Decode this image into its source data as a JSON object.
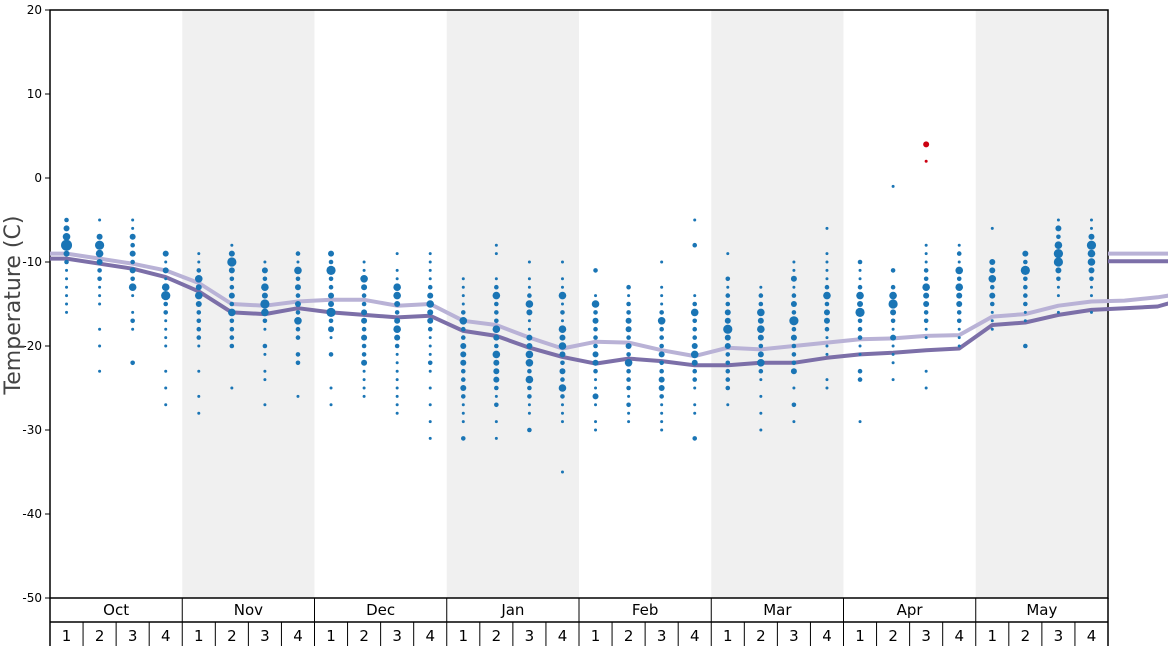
{
  "chart_data": {
    "type": "scatter",
    "ylabel": "Temperature (C)",
    "ylim": [
      -50,
      20
    ],
    "yticks": [
      20,
      10,
      0,
      -10,
      -20,
      -30,
      -40,
      -50
    ],
    "months": [
      "Oct",
      "Nov",
      "Dec",
      "Jan",
      "Feb",
      "Mar",
      "Apr",
      "May"
    ],
    "weeks": [
      "1",
      "2",
      "3",
      "4"
    ],
    "shaded_months": [
      "Nov",
      "Jan",
      "Mar",
      "May"
    ],
    "colors": {
      "points": "#1a75b5",
      "extreme_points": "#cc0011",
      "line_upper": "#b9b2d6",
      "line_lower": "#7c6fa8",
      "shade": "#f0f0f0"
    },
    "series": [
      {
        "values": [
          -9.0,
          -9.6,
          -10.2,
          -11.0,
          -12.5,
          -15.0,
          -15.2,
          -14.7,
          -14.5,
          -14.5,
          -15.2,
          -15.0,
          -17.0,
          -17.5,
          -19.0,
          -20.3,
          -19.5,
          -19.6,
          -20.5,
          -21.2,
          -20.2,
          -20.4,
          -20.0,
          -19.6,
          -19.2,
          -19.1,
          -18.8,
          -18.7,
          -16.5,
          -16.2,
          -15.2,
          -14.7,
          -14.6,
          -14.2,
          -13.6,
          -13.0,
          -12.4,
          -10.5,
          -9.5,
          -9.0
        ]
      },
      {
        "values": [
          -9.6,
          -10.2,
          -10.8,
          -11.8,
          -13.5,
          -16.0,
          -16.2,
          -15.5,
          -16.0,
          -16.3,
          -16.6,
          -16.4,
          -18.2,
          -18.8,
          -20.2,
          -21.3,
          -22.1,
          -21.5,
          -21.8,
          -22.3,
          -22.3,
          -22.0,
          -22.0,
          -21.4,
          -21.0,
          -20.8,
          -20.5,
          -20.3,
          -17.5,
          -17.2,
          -16.3,
          -15.7,
          -15.5,
          -15.3,
          -14.2,
          -13.3,
          -13.0,
          -11.2,
          -10.2,
          -9.9
        ]
      }
    ],
    "extreme_points": [
      {
        "x": 26,
        "y": 4
      },
      {
        "x": 26,
        "y": 2
      }
    ],
    "point_columns": [
      {
        "values": [
          -5,
          -6,
          -7,
          -8,
          -9,
          -10,
          -11,
          -12,
          -13,
          -14,
          -15,
          -16
        ],
        "counts": [
          2,
          3,
          4,
          6,
          3,
          2,
          1,
          1,
          1,
          1,
          1,
          1
        ]
      },
      {
        "values": [
          -5,
          -7,
          -8,
          -9,
          -10,
          -11,
          -12,
          -13,
          -14,
          -15,
          -18,
          -20,
          -23
        ],
        "counts": [
          1,
          3,
          5,
          4,
          3,
          2,
          2,
          1,
          1,
          1,
          1,
          1,
          1
        ]
      },
      {
        "values": [
          -5,
          -6,
          -7,
          -8,
          -9,
          -10,
          -11,
          -12,
          -13,
          -14,
          -16,
          -17,
          -18,
          -22
        ],
        "counts": [
          1,
          1,
          3,
          2,
          3,
          2,
          3,
          2,
          4,
          1,
          1,
          2,
          1,
          2
        ]
      },
      {
        "values": [
          -9,
          -10,
          -11,
          -12,
          -13,
          -14,
          -15,
          -16,
          -17,
          -18,
          -19,
          -20,
          -23,
          -25,
          -27
        ],
        "counts": [
          3,
          1,
          3,
          1,
          4,
          5,
          2,
          2,
          1,
          1,
          1,
          1,
          1,
          1,
          1
        ]
      },
      {
        "values": [
          -9,
          -10,
          -11,
          -12,
          -13,
          -14,
          -15,
          -16,
          -17,
          -18,
          -19,
          -20,
          -23,
          -26,
          -28
        ],
        "counts": [
          1,
          1,
          2,
          4,
          3,
          4,
          3,
          2,
          2,
          2,
          2,
          1,
          1,
          1,
          1
        ]
      },
      {
        "values": [
          -8,
          -9,
          -10,
          -11,
          -12,
          -13,
          -14,
          -15,
          -16,
          -17,
          -18,
          -19,
          -20,
          -25
        ],
        "counts": [
          1,
          3,
          5,
          3,
          2,
          2,
          3,
          2,
          4,
          2,
          2,
          2,
          2,
          1
        ]
      },
      {
        "values": [
          -10,
          -11,
          -12,
          -13,
          -14,
          -15,
          -16,
          -17,
          -18,
          -20,
          -21,
          -23,
          -24,
          -27
        ],
        "counts": [
          1,
          3,
          2,
          4,
          3,
          5,
          4,
          2,
          1,
          2,
          1,
          1,
          1,
          1
        ]
      },
      {
        "values": [
          -9,
          -10,
          -11,
          -12,
          -13,
          -14,
          -15,
          -16,
          -17,
          -18,
          -19,
          -21,
          -22,
          -26
        ],
        "counts": [
          2,
          1,
          4,
          2,
          3,
          2,
          3,
          2,
          4,
          2,
          2,
          2,
          2,
          1
        ]
      },
      {
        "values": [
          -9,
          -10,
          -11,
          -12,
          -13,
          -14,
          -15,
          -16,
          -17,
          -18,
          -19,
          -21,
          -25,
          -27
        ],
        "counts": [
          3,
          2,
          5,
          2,
          2,
          3,
          3,
          5,
          2,
          3,
          1,
          2,
          1,
          1
        ]
      },
      {
        "values": [
          -10,
          -11,
          -12,
          -13,
          -14,
          -15,
          -16,
          -17,
          -18,
          -19,
          -20,
          -21,
          -22,
          -23,
          -24,
          -25,
          -26
        ],
        "counts": [
          1,
          1,
          4,
          3,
          2,
          2,
          3,
          3,
          2,
          3,
          2,
          2,
          3,
          1,
          1,
          1,
          1
        ]
      },
      {
        "values": [
          -9,
          -11,
          -12,
          -13,
          -14,
          -15,
          -16,
          -17,
          -18,
          -19,
          -20,
          -21,
          -22,
          -23,
          -24,
          -25,
          -26,
          -27,
          -28
        ],
        "counts": [
          1,
          1,
          1,
          4,
          4,
          3,
          2,
          3,
          4,
          3,
          2,
          1,
          1,
          1,
          1,
          1,
          1,
          1,
          1
        ]
      },
      {
        "values": [
          -9,
          -10,
          -11,
          -12,
          -13,
          -14,
          -15,
          -16,
          -17,
          -18,
          -19,
          -20,
          -21,
          -22,
          -23,
          -25,
          -27,
          -29,
          -31
        ],
        "counts": [
          1,
          1,
          1,
          1,
          2,
          3,
          4,
          3,
          3,
          2,
          1,
          1,
          1,
          2,
          1,
          1,
          1,
          1,
          1
        ]
      },
      {
        "values": [
          -12,
          -13,
          -14,
          -15,
          -16,
          -17,
          -18,
          -19,
          -20,
          -21,
          -22,
          -23,
          -24,
          -25,
          -26,
          -27,
          -28,
          -29,
          -31
        ],
        "counts": [
          1,
          1,
          1,
          1,
          2,
          4,
          2,
          2,
          3,
          3,
          3,
          2,
          2,
          3,
          2,
          1,
          1,
          1,
          2
        ]
      },
      {
        "values": [
          -8,
          -9,
          -12,
          -13,
          -14,
          -15,
          -16,
          -17,
          -18,
          -19,
          -20,
          -21,
          -22,
          -23,
          -24,
          -25,
          -26,
          -27,
          -29,
          -31
        ],
        "counts": [
          1,
          1,
          1,
          2,
          4,
          2,
          2,
          2,
          4,
          3,
          2,
          4,
          3,
          3,
          3,
          2,
          1,
          2,
          1,
          1
        ]
      },
      {
        "values": [
          -10,
          -12,
          -13,
          -14,
          -15,
          -16,
          -17,
          -18,
          -19,
          -20,
          -21,
          -22,
          -23,
          -24,
          -25,
          -26,
          -27,
          -28,
          -30
        ],
        "counts": [
          1,
          1,
          1,
          2,
          4,
          3,
          1,
          1,
          3,
          3,
          4,
          4,
          2,
          4,
          2,
          2,
          1,
          1,
          2
        ]
      },
      {
        "values": [
          -10,
          -12,
          -13,
          -14,
          -15,
          -16,
          -17,
          -18,
          -19,
          -20,
          -21,
          -22,
          -23,
          -24,
          -25,
          -26,
          -27,
          -28,
          -29,
          -35
        ],
        "counts": [
          1,
          1,
          1,
          4,
          1,
          2,
          1,
          4,
          3,
          4,
          3,
          2,
          3,
          2,
          4,
          2,
          1,
          1,
          1,
          1
        ]
      },
      {
        "values": [
          -11,
          -14,
          -15,
          -16,
          -17,
          -18,
          -19,
          -20,
          -21,
          -22,
          -23,
          -24,
          -25,
          -26,
          -27,
          -29,
          -30
        ],
        "counts": [
          2,
          1,
          4,
          2,
          3,
          2,
          2,
          2,
          3,
          3,
          2,
          1,
          1,
          3,
          1,
          1,
          1
        ]
      },
      {
        "values": [
          -13,
          -14,
          -15,
          -16,
          -17,
          -18,
          -19,
          -20,
          -21,
          -22,
          -23,
          -24,
          -25,
          -26,
          -27,
          -28,
          -29
        ],
        "counts": [
          2,
          1,
          2,
          2,
          3,
          3,
          2,
          3,
          2,
          4,
          2,
          2,
          2,
          1,
          2,
          1,
          1
        ]
      },
      {
        "values": [
          -10,
          -13,
          -14,
          -15,
          -16,
          -17,
          -18,
          -19,
          -20,
          -21,
          -22,
          -23,
          -24,
          -25,
          -26,
          -27,
          -28,
          -29,
          -30
        ],
        "counts": [
          1,
          1,
          1,
          1,
          2,
          4,
          2,
          2,
          2,
          3,
          2,
          2,
          3,
          3,
          2,
          1,
          1,
          1,
          1
        ]
      },
      {
        "values": [
          -5,
          -8,
          -14,
          -15,
          -16,
          -17,
          -18,
          -19,
          -20,
          -21,
          -22,
          -23,
          -24,
          -25,
          -27,
          -28,
          -31
        ],
        "counts": [
          1,
          2,
          1,
          2,
          4,
          2,
          2,
          2,
          3,
          4,
          3,
          2,
          2,
          1,
          1,
          1,
          2
        ]
      },
      {
        "values": [
          -9,
          -12,
          -13,
          -14,
          -15,
          -16,
          -17,
          -18,
          -19,
          -20,
          -21,
          -22,
          -23,
          -24,
          -25,
          -27
        ],
        "counts": [
          1,
          2,
          1,
          2,
          2,
          3,
          3,
          5,
          3,
          3,
          2,
          2,
          2,
          2,
          2,
          1
        ]
      },
      {
        "values": [
          -13,
          -14,
          -15,
          -16,
          -17,
          -18,
          -19,
          -20,
          -21,
          -22,
          -23,
          -24,
          -26,
          -28,
          -30
        ],
        "counts": [
          1,
          2,
          2,
          4,
          3,
          4,
          3,
          2,
          3,
          4,
          2,
          1,
          1,
          1,
          1
        ]
      },
      {
        "values": [
          -10,
          -11,
          -12,
          -13,
          -14,
          -15,
          -16,
          -17,
          -18,
          -19,
          -20,
          -21,
          -22,
          -23,
          -25,
          -27,
          -29
        ],
        "counts": [
          1,
          1,
          3,
          1,
          2,
          3,
          2,
          5,
          2,
          3,
          2,
          2,
          2,
          3,
          1,
          2,
          1
        ]
      },
      {
        "values": [
          -6,
          -9,
          -10,
          -11,
          -12,
          -13,
          -14,
          -15,
          -16,
          -17,
          -18,
          -19,
          -20,
          -21,
          -24,
          -25
        ],
        "counts": [
          1,
          1,
          1,
          1,
          1,
          2,
          4,
          2,
          3,
          3,
          2,
          1,
          1,
          1,
          1,
          1
        ]
      },
      {
        "values": [
          -10,
          -11,
          -12,
          -13,
          -14,
          -15,
          -16,
          -17,
          -18,
          -19,
          -20,
          -21,
          -23,
          -24,
          -29
        ],
        "counts": [
          2,
          1,
          1,
          2,
          4,
          3,
          5,
          2,
          2,
          2,
          1,
          1,
          2,
          2,
          1
        ]
      },
      {
        "values": [
          -1,
          -11,
          -13,
          -14,
          -15,
          -16,
          -17,
          -18,
          -19,
          -20,
          -21,
          -22,
          -24
        ],
        "counts": [
          1,
          2,
          2,
          4,
          5,
          3,
          2,
          1,
          3,
          1,
          1,
          1,
          1
        ]
      },
      {
        "values": [
          -8,
          -9,
          -10,
          -11,
          -12,
          -13,
          -14,
          -15,
          -16,
          -17,
          -18,
          -19,
          -23,
          -25
        ],
        "counts": [
          1,
          1,
          1,
          2,
          2,
          4,
          3,
          3,
          2,
          2,
          1,
          1,
          1,
          1
        ]
      },
      {
        "values": [
          -8,
          -9,
          -10,
          -11,
          -12,
          -13,
          -14,
          -15,
          -16,
          -17,
          -18,
          -19,
          -20
        ],
        "counts": [
          1,
          2,
          1,
          4,
          2,
          4,
          3,
          3,
          2,
          2,
          1,
          1,
          1
        ]
      },
      {
        "values": [
          -6,
          -10,
          -11,
          -12,
          -13,
          -14,
          -15,
          -16,
          -17,
          -18
        ],
        "counts": [
          1,
          3,
          3,
          4,
          2,
          3,
          2,
          1,
          1,
          1
        ]
      },
      {
        "values": [
          -9,
          -10,
          -11,
          -12,
          -13,
          -14,
          -15,
          -16,
          -17,
          -20
        ],
        "counts": [
          3,
          2,
          5,
          2,
          2,
          2,
          2,
          1,
          1,
          2
        ]
      },
      {
        "values": [
          -5,
          -6,
          -7,
          -8,
          -9,
          -10,
          -11,
          -12,
          -13,
          -14,
          -16
        ],
        "counts": [
          1,
          3,
          2,
          4,
          5,
          5,
          3,
          2,
          1,
          1,
          1
        ]
      },
      {
        "values": [
          -5,
          -6,
          -7,
          -8,
          -9,
          -10,
          -11,
          -12,
          -13,
          -14,
          -16
        ],
        "counts": [
          1,
          1,
          3,
          5,
          4,
          4,
          3,
          2,
          1,
          1,
          1
        ]
      }
    ]
  }
}
